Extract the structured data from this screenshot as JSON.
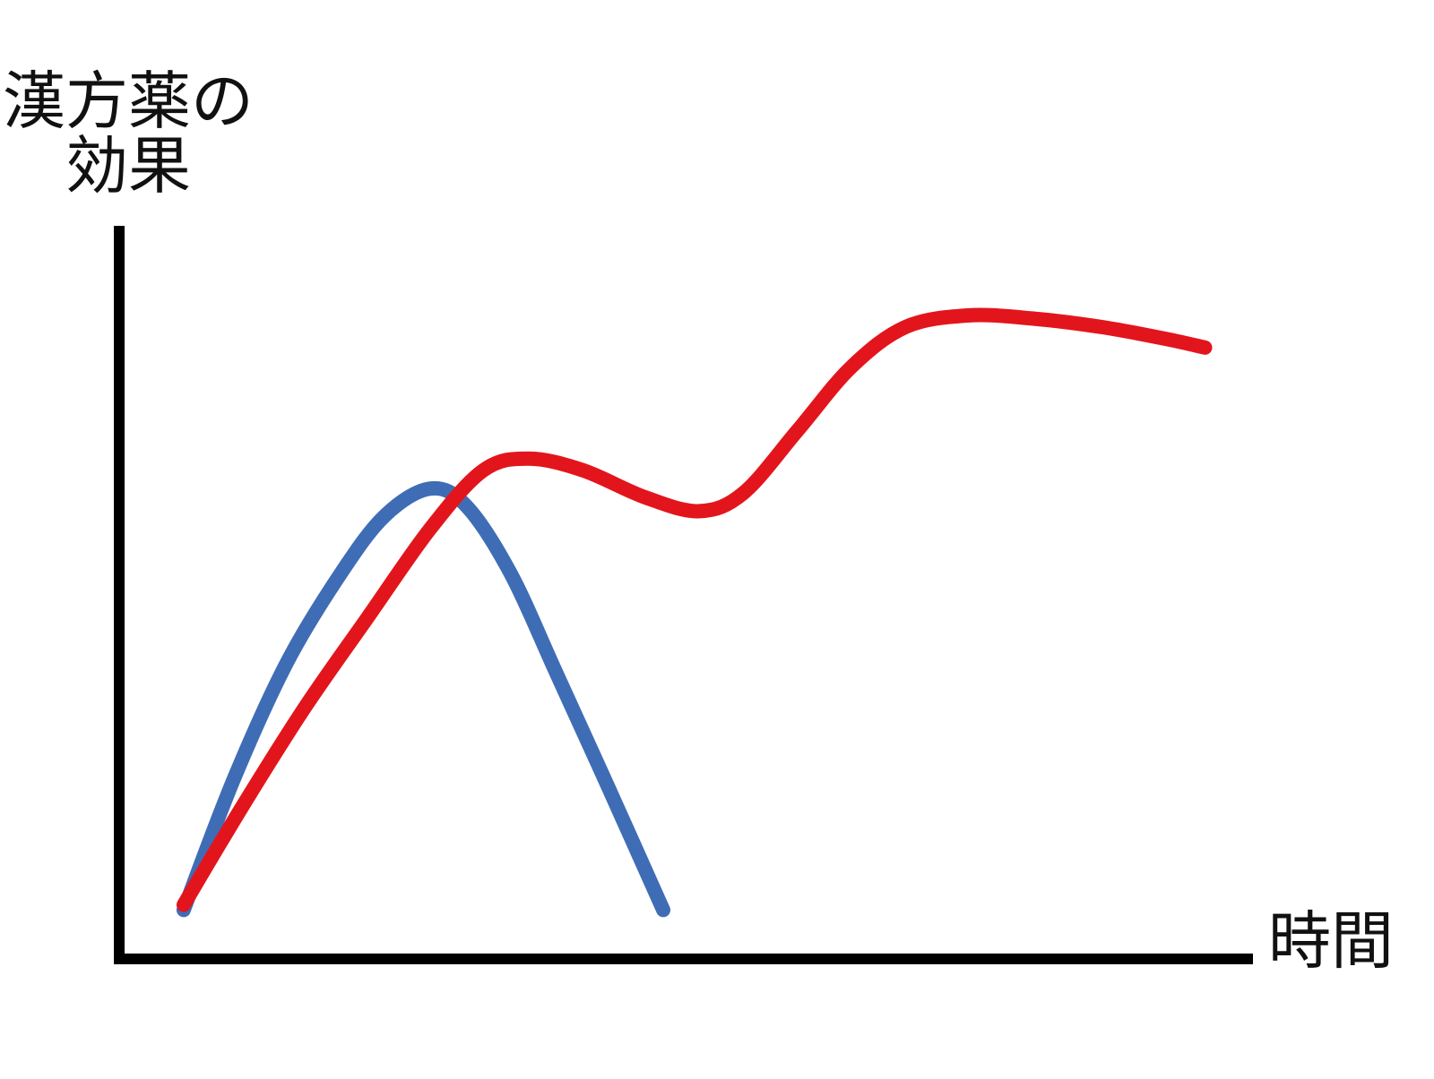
{
  "chart_data": {
    "type": "line",
    "ylabel": [
      "漢方薬の",
      "効果"
    ],
    "xlabel": "時間",
    "xlim": [
      0,
      100
    ],
    "ylim": [
      0,
      100
    ],
    "series": [
      {
        "color": "#3f6db5",
        "x": [
          5.7,
          10.1,
          14.8,
          19.6,
          23.5,
          27.5,
          30.7,
          34.6,
          38.6,
          43.3,
          48.1
        ],
        "values": [
          6.7,
          24.5,
          40.5,
          52.8,
          60.7,
          64.4,
          62.0,
          52.8,
          39.3,
          23.3,
          6.7
        ]
      },
      {
        "color": "#e3151c",
        "x": [
          5.7,
          10.9,
          16.4,
          21.9,
          27.5,
          32.2,
          36.2,
          41.0,
          46.5,
          51.3,
          55.2,
          60.0,
          64.7,
          69.5,
          75.0,
          80.6,
          86.9,
          92.5,
          96.0
        ],
        "values": [
          7.4,
          20.9,
          34.4,
          46.6,
          58.9,
          66.9,
          68.5,
          66.9,
          63.2,
          61.3,
          63.8,
          72.4,
          81.0,
          86.5,
          88.1,
          87.7,
          86.5,
          84.9,
          83.7
        ]
      }
    ]
  }
}
